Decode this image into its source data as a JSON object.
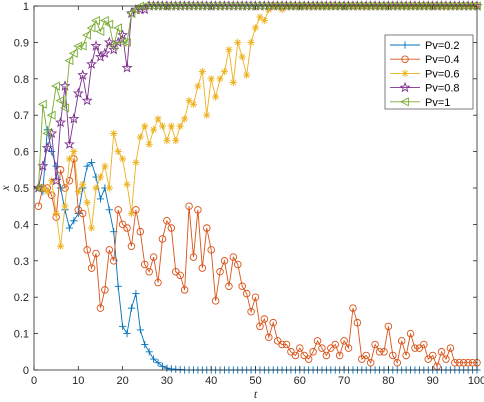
{
  "chart_data": {
    "type": "line",
    "xlabel": "t",
    "ylabel": "x",
    "xlim": [
      0,
      100
    ],
    "ylim": [
      0,
      1
    ],
    "xticks": [
      "0",
      "10",
      "20",
      "30",
      "40",
      "50",
      "60",
      "70",
      "80",
      "90",
      "100"
    ],
    "yticks": [
      "0",
      "0.1",
      "0.2",
      "0.3",
      "0.4",
      "0.5",
      "0.6",
      "0.7",
      "0.8",
      "0.9",
      "1"
    ],
    "grid": false,
    "legend_position": "top-right",
    "x": [
      1,
      2,
      3,
      4,
      5,
      6,
      7,
      8,
      9,
      10,
      11,
      12,
      13,
      14,
      15,
      16,
      17,
      18,
      19,
      20,
      21,
      22,
      23,
      24,
      25,
      26,
      27,
      28,
      29,
      30,
      31,
      32,
      33,
      34,
      35,
      36,
      37,
      38,
      39,
      40,
      41,
      42,
      43,
      44,
      45,
      46,
      47,
      48,
      49,
      50,
      51,
      52,
      53,
      54,
      55,
      56,
      57,
      58,
      59,
      60,
      61,
      62,
      63,
      64,
      65,
      66,
      67,
      68,
      69,
      70,
      71,
      72,
      73,
      74,
      75,
      76,
      77,
      78,
      79,
      80,
      81,
      82,
      83,
      84,
      85,
      86,
      87,
      88,
      89,
      90,
      91,
      92,
      93,
      94,
      95,
      96,
      97,
      98,
      99,
      100
    ],
    "series": [
      {
        "name": "Pv=0.2",
        "color": "#0072BD",
        "marker": "plus",
        "values": [
          0.5,
          0.49,
          0.66,
          0.6,
          0.56,
          0.5,
          0.44,
          0.39,
          0.41,
          0.43,
          0.5,
          0.56,
          0.57,
          0.53,
          0.47,
          0.5,
          0.44,
          0.38,
          0.23,
          0.12,
          0.1,
          0.17,
          0.21,
          0.11,
          0.07,
          0.05,
          0.03,
          0.02,
          0.01,
          0.005,
          0.003,
          0.002,
          0.001,
          0,
          0,
          0,
          0,
          0,
          0,
          0,
          0,
          0,
          0,
          0,
          0,
          0,
          0,
          0,
          0,
          0,
          0,
          0,
          0,
          0,
          0,
          0,
          0,
          0,
          0,
          0,
          0,
          0,
          0,
          0,
          0,
          0,
          0,
          0,
          0,
          0,
          0,
          0,
          0,
          0,
          0,
          0,
          0,
          0,
          0,
          0,
          0,
          0,
          0,
          0,
          0,
          0,
          0,
          0,
          0,
          0,
          0,
          0,
          0,
          0,
          0,
          0,
          0,
          0,
          0,
          0
        ]
      },
      {
        "name": "Pv=0.4",
        "color": "#D95319",
        "marker": "circle",
        "values": [
          0.45,
          0.5,
          0.5,
          0.48,
          0.42,
          0.55,
          0.5,
          0.52,
          0.58,
          0.44,
          0.43,
          0.33,
          0.28,
          0.32,
          0.17,
          0.22,
          0.33,
          0.3,
          0.44,
          0.4,
          0.39,
          0.34,
          0.44,
          0.38,
          0.29,
          0.27,
          0.31,
          0.24,
          0.36,
          0.41,
          0.39,
          0.27,
          0.26,
          0.22,
          0.45,
          0.31,
          0.44,
          0.28,
          0.39,
          0.33,
          0.19,
          0.27,
          0.3,
          0.23,
          0.31,
          0.29,
          0.23,
          0.21,
          0.16,
          0.2,
          0.12,
          0.14,
          0.09,
          0.13,
          0.08,
          0.07,
          0.07,
          0.05,
          0.04,
          0.06,
          0.04,
          0.03,
          0.05,
          0.08,
          0.06,
          0.04,
          0.06,
          0.07,
          0.04,
          0.08,
          0.06,
          0.17,
          0.13,
          0.03,
          0.04,
          0.02,
          0.07,
          0.05,
          0.05,
          0.12,
          0.04,
          0.02,
          0.08,
          0.04,
          0.1,
          0.06,
          0.06,
          0.07,
          0.03,
          0.04,
          0.01,
          0.05,
          0.03,
          0.06,
          0.02,
          0.02,
          0.02,
          0.02,
          0.02,
          0.02
        ]
      },
      {
        "name": "Pv=0.6",
        "color": "#EDB120",
        "marker": "asterisk",
        "values": [
          0.5,
          0.5,
          0.49,
          0.52,
          0.43,
          0.34,
          0.45,
          0.58,
          0.6,
          0.49,
          0.51,
          0.46,
          0.39,
          0.5,
          0.53,
          0.56,
          0.5,
          0.65,
          0.6,
          0.58,
          0.51,
          0.43,
          0.57,
          0.64,
          0.67,
          0.62,
          0.66,
          0.69,
          0.67,
          0.63,
          0.67,
          0.63,
          0.67,
          0.69,
          0.74,
          0.73,
          0.78,
          0.82,
          0.7,
          0.8,
          0.75,
          0.8,
          0.82,
          0.88,
          0.79,
          0.9,
          0.86,
          0.81,
          0.9,
          0.94,
          0.97,
          0.96,
          0.99,
          1,
          1,
          0.99,
          1,
          1,
          1,
          1,
          1,
          1,
          1,
          1,
          1,
          1,
          1,
          1,
          1,
          1,
          1,
          1,
          1,
          1,
          1,
          1,
          1,
          1,
          1,
          1,
          1,
          1,
          1,
          1,
          1,
          1,
          1,
          1,
          1,
          1,
          1,
          1,
          1,
          1,
          1,
          1,
          1,
          1,
          1,
          1
        ]
      },
      {
        "name": "Pv=0.8",
        "color": "#7E2F8E",
        "marker": "pentagram",
        "values": [
          0.5,
          0.56,
          0.61,
          0.65,
          0.52,
          0.68,
          0.78,
          0.62,
          0.69,
          0.76,
          0.81,
          0.74,
          0.84,
          0.89,
          0.86,
          0.87,
          0.9,
          0.88,
          0.9,
          0.92,
          0.83,
          0.98,
          0.99,
          0.99,
          0.99,
          1,
          1,
          1,
          1,
          1,
          1,
          1,
          1,
          1,
          1,
          1,
          1,
          1,
          1,
          1,
          1,
          1,
          1,
          1,
          1,
          1,
          1,
          1,
          1,
          1,
          1,
          1,
          1,
          1,
          1,
          1,
          1,
          1,
          1,
          1,
          1,
          1,
          1,
          1,
          1,
          1,
          1,
          1,
          1,
          1,
          1,
          1,
          1,
          1,
          1,
          1,
          1,
          1,
          1,
          1,
          1,
          1,
          1,
          1,
          1,
          1,
          1,
          1,
          1,
          1,
          1,
          1,
          1,
          1,
          1,
          1,
          1,
          1,
          1,
          1
        ]
      },
      {
        "name": "Pv=1",
        "color": "#77AC30",
        "marker": "triangle-left",
        "values": [
          0.5,
          0.73,
          0.65,
          0.7,
          0.78,
          0.74,
          0.72,
          0.85,
          0.87,
          0.89,
          0.89,
          0.92,
          0.94,
          0.96,
          0.93,
          0.96,
          0.95,
          0.89,
          0.94,
          0.9,
          0.9,
          0.98,
          0.99,
          1,
          1,
          1,
          1,
          1,
          1,
          1,
          1,
          1,
          1,
          1,
          1,
          1,
          1,
          1,
          1,
          1,
          1,
          1,
          1,
          1,
          1,
          1,
          1,
          1,
          1,
          1,
          1,
          1,
          1,
          1,
          1,
          1,
          1,
          1,
          1,
          1,
          1,
          1,
          1,
          1,
          1,
          1,
          1,
          1,
          1,
          1,
          1,
          1,
          1,
          1,
          1,
          1,
          1,
          1,
          1,
          1,
          1,
          1,
          1,
          1,
          1,
          1,
          1,
          1,
          1,
          1,
          1,
          1,
          1,
          1,
          1,
          1,
          1,
          1,
          1,
          1
        ]
      }
    ]
  }
}
